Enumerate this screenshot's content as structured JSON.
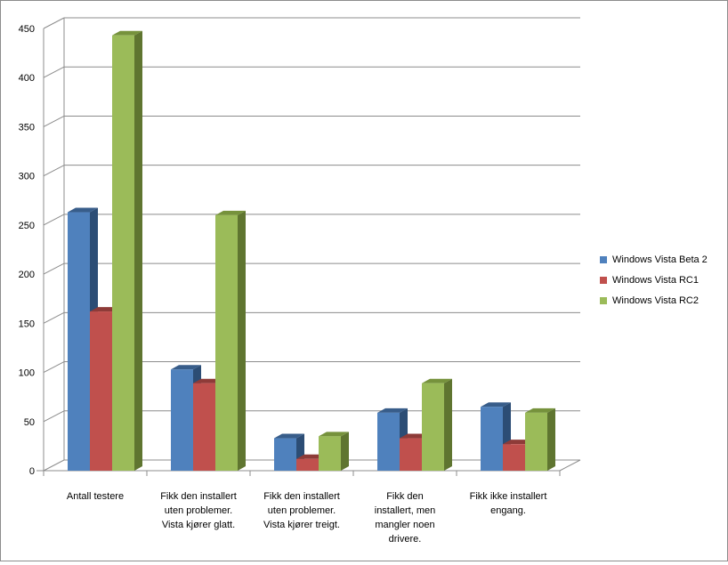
{
  "chart_data": {
    "type": "bar",
    "title": "",
    "xlabel": "",
    "ylabel": "",
    "ylim": [
      0,
      450
    ],
    "yticks": [
      0,
      50,
      100,
      150,
      200,
      250,
      300,
      350,
      400,
      450
    ],
    "grid": true,
    "legend_position": "right",
    "categories": [
      [
        "Antall testere"
      ],
      [
        "Fikk den installert",
        "uten problemer.",
        "Vista kjører glatt."
      ],
      [
        "Fikk den installert",
        "uten problemer.",
        "Vista kjører treigt."
      ],
      [
        "Fikk den",
        "installert, men",
        "mangler noen",
        "drivere."
      ],
      [
        "Fikk ikke installert",
        "engang."
      ]
    ],
    "series": [
      {
        "name": "Windows Vista Beta 2",
        "color": "#4f81bd",
        "top": "#385d8a",
        "side": "#2c4d75",
        "values": [
          263,
          103,
          33,
          59,
          65
        ]
      },
      {
        "name": "Windows Vista RC1",
        "color": "#c0504d",
        "top": "#8e3b38",
        "side": "#7a2f2c",
        "values": [
          162,
          89,
          12,
          33,
          27
        ]
      },
      {
        "name": "Windows Vista RC2",
        "color": "#9bbb59",
        "top": "#76923c",
        "side": "#5f7530",
        "values": [
          443,
          260,
          35,
          89,
          59
        ]
      }
    ]
  }
}
